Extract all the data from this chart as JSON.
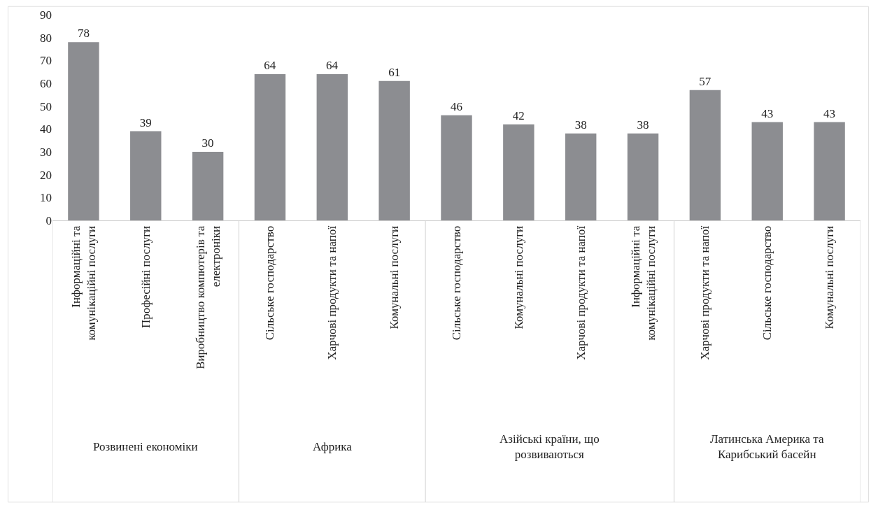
{
  "chart_data": {
    "type": "bar",
    "categories": [
      "Інформаційні та комунікаційні послуги",
      "Професійні послуги",
      "Виробництво компютерів та електроніки",
      "Сільське господарство",
      "Харчові продукти та напої",
      "Комунальні послуги",
      "Сільське господарство",
      "Комунальні послуги",
      "Харчові продукти та напої",
      "Інформаційні та комунікаційні послуги",
      "Харчові продукти та напої",
      "Сільське господарство",
      "Комунальні послуги"
    ],
    "values": [
      78,
      39,
      30,
      64,
      64,
      61,
      46,
      42,
      38,
      38,
      57,
      43,
      43
    ],
    "color": "#8c8d91",
    "ylim": [
      0,
      90
    ],
    "yticks": [
      0,
      10,
      20,
      30,
      40,
      50,
      60,
      70,
      80,
      90
    ],
    "data_labels": true,
    "annotations": [
      "Розвинені економіки",
      "Африка",
      "Азійські країни, що розвиваються",
      "Латинська Америка та Карибський басейн"
    ]
  }
}
